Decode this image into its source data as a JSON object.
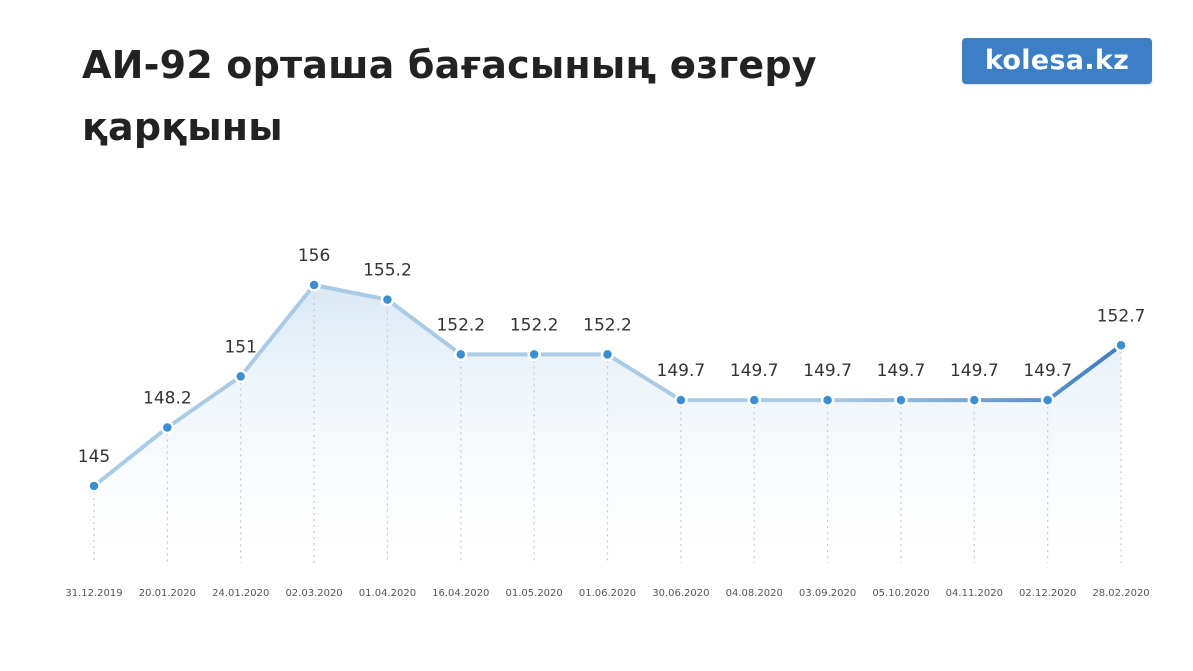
{
  "header": {
    "title": "АИ-92 орташа бағасының өзгеру қарқыны",
    "logo_text": "kolesa.kz"
  },
  "colors": {
    "logo_bg": "#3c7fc4",
    "line_light": "#a9cbe6",
    "line_dark": "#3f7dbf",
    "marker": "#3b8fd0",
    "area_top": "#d6e6f4",
    "area_bottom": "#ffffff"
  },
  "chart_data": {
    "type": "line",
    "title": "АИ-92 орташа бағасының өзгеру қарқыны",
    "xlabel": "",
    "ylabel": "",
    "grid": false,
    "legend": "none",
    "categories": [
      "31.12.2019",
      "20.01.2020",
      "24.01.2020",
      "02.03.2020",
      "01.04.2020",
      "16.04.2020",
      "01.05.2020",
      "01.06.2020",
      "30.06.2020",
      "04.08.2020",
      "03.09.2020",
      "05.10.2020",
      "04.11.2020",
      "02.12.2020",
      "28.02.2020"
    ],
    "values": [
      145,
      148.2,
      151,
      156,
      155.2,
      152.2,
      152.2,
      152.2,
      149.7,
      149.7,
      149.7,
      149.7,
      149.7,
      149.7,
      152.7
    ],
    "data_labels": [
      "145",
      "148.2",
      "151",
      "156",
      "155.2",
      "152.2",
      "152.2",
      "152.2",
      "149.7",
      "149.7",
      "149.7",
      "149.7",
      "149.7",
      "149.7",
      "152.7"
    ]
  }
}
